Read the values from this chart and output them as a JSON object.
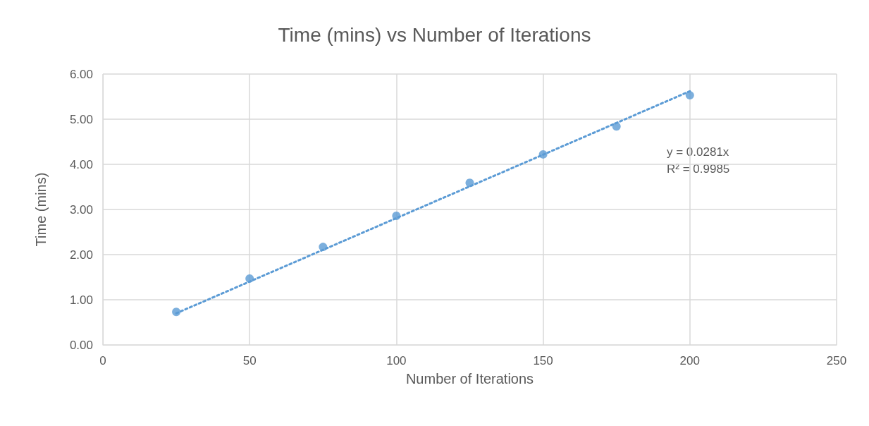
{
  "chart_data": {
    "type": "scatter",
    "title": "Time (mins) vs Number of Iterations",
    "xlabel": "Number of Iterations",
    "ylabel": "Time (mins)",
    "annotations": [
      "y = 0.0281x",
      "R² = 0.9985"
    ],
    "series": [
      {
        "color": "#5b9bd5",
        "marker": "circle",
        "x": [
          25,
          50,
          75,
          100,
          125,
          150,
          175,
          200
        ],
        "values": [
          0.73,
          1.47,
          2.17,
          2.86,
          3.59,
          4.22,
          4.84,
          5.53
        ]
      },
      {
        "type": "line",
        "color": "#5b9bd5",
        "marker": "none",
        "line_style": "dotted",
        "x": [
          25,
          200
        ],
        "values": [
          0.7,
          5.62
        ]
      }
    ],
    "xlim": [
      0,
      250
    ],
    "xticks": [
      0,
      50,
      100,
      150,
      200,
      250
    ],
    "ylim": [
      0,
      6
    ],
    "yticks": [
      {
        "value": 0,
        "label": "0.00"
      },
      {
        "value": 1,
        "label": "1.00"
      },
      {
        "value": 2,
        "label": "2.00"
      },
      {
        "value": 3,
        "label": "3.00"
      },
      {
        "value": 4,
        "label": "4.00"
      },
      {
        "value": 5,
        "label": "5.00"
      },
      {
        "value": 6,
        "label": "6.00"
      }
    ],
    "grid": true
  }
}
